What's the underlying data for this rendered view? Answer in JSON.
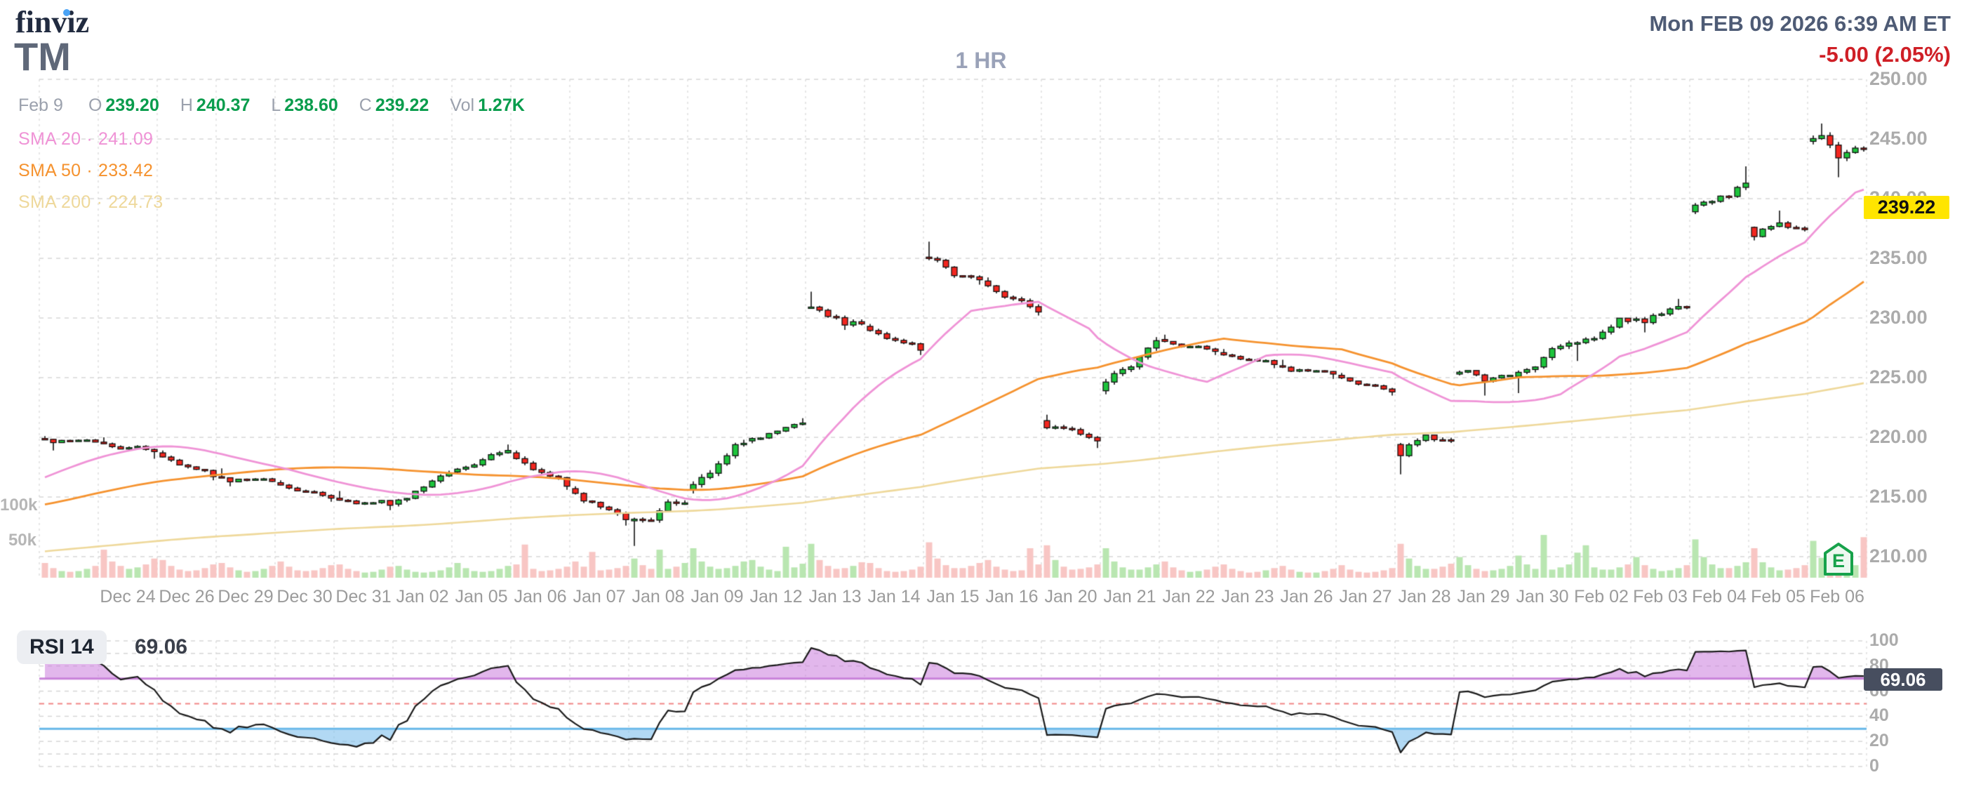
{
  "header": {
    "logo": "finviz",
    "ticker": "TM",
    "timeframe": "1 HR",
    "datetime": "Mon FEB 09 2026 6:39 AM ET",
    "change": "-5.00 (2.05%)"
  },
  "quote": {
    "date": "Feb 9",
    "fields": [
      {
        "label": "O",
        "value": "239.20"
      },
      {
        "label": "H",
        "value": "240.37"
      },
      {
        "label": "L",
        "value": "238.60"
      },
      {
        "label": "C",
        "value": "239.22"
      },
      {
        "label": "Vol",
        "value": "1.27K"
      }
    ]
  },
  "legend": [
    {
      "label": "SMA 20",
      "sep": "·",
      "value": "241.09",
      "color": "#ef93d6"
    },
    {
      "label": "SMA 50",
      "sep": "·",
      "value": "233.42",
      "color": "#f5922e"
    },
    {
      "label": "SMA 200",
      "sep": "·",
      "value": "224.73",
      "color": "#eed89a"
    }
  ],
  "colors": {
    "candle_up": "#1dc43c",
    "candle_down": "#f3261f",
    "wick": "#111111",
    "volume_up": "#b9e6b1",
    "volume_down": "#f8c6c4",
    "sma20": "#ef93d6",
    "sma50": "#f5922e",
    "sma200": "#eed89a",
    "grid": "#d4d4d4",
    "rsi_line": "#1a1a1a",
    "rsi_overbought_line": "#c884d8",
    "rsi_oversold_line": "#66b7e8",
    "rsi_mid_line": "#f08585",
    "rsi_overbought_fill": "rgba(203,124,221,0.55)",
    "rsi_oversold_fill": "rgba(126,192,236,0.6)",
    "badge_bg": "#ffe500",
    "rsi_badge_bg": "#474e5f"
  },
  "chart_data": {
    "type": "candlestick",
    "symbol": "TM",
    "timeframe": "1 HR",
    "title": "TM 1 HR candlestick chart with SMA 20/50/200, volume and RSI 14",
    "ylim": [
      207.5,
      251.5
    ],
    "price_axis_ticks": [
      "250.00",
      "245.00",
      "240.00",
      "235.00",
      "230.00",
      "225.00",
      "220.00",
      "215.00",
      "210.00"
    ],
    "volume_ticks": [
      "100k",
      "50k"
    ],
    "current_price": "239.22",
    "sma_current": {
      "sma20": 241.09,
      "sma50": 233.42,
      "sma200": 224.73
    },
    "earnings_marker": {
      "label": "E",
      "date": "Feb 06"
    },
    "days": [
      {
        "date": "",
        "o": 219.9,
        "h": 220.1,
        "l": 218.9,
        "c": 219.6,
        "v": [
          20,
          13,
          9,
          8,
          9,
          12,
          16
        ]
      },
      {
        "date": "Dec 24",
        "o": 219.6,
        "h": 220.0,
        "l": 218.2,
        "c": 218.8,
        "v": [
          38,
          22,
          16,
          12,
          14,
          18,
          26
        ]
      },
      {
        "date": "Dec 26",
        "o": 218.7,
        "h": 218.9,
        "l": 216.4,
        "c": 216.7,
        "v": [
          24,
          16,
          11,
          9,
          10,
          13,
          18
        ]
      },
      {
        "date": "Dec 29",
        "o": 216.7,
        "h": 217.4,
        "l": 215.9,
        "c": 216.3,
        "v": [
          20,
          14,
          10,
          8,
          9,
          12,
          16
        ]
      },
      {
        "date": "Dec 30",
        "o": 216.2,
        "h": 216.4,
        "l": 214.6,
        "c": 214.9,
        "v": [
          22,
          15,
          10,
          9,
          10,
          13,
          17
        ]
      },
      {
        "date": "Dec 31",
        "o": 214.9,
        "h": 215.5,
        "l": 213.9,
        "c": 214.3,
        "v": [
          18,
          12,
          9,
          7,
          8,
          11,
          15
        ]
      },
      {
        "date": "Jan 02",
        "o": 214.4,
        "h": 217.2,
        "l": 214.2,
        "c": 217.0,
        "v": [
          16,
          11,
          8,
          7,
          8,
          10,
          14
        ]
      },
      {
        "date": "Jan 05",
        "o": 217.1,
        "h": 219.4,
        "l": 216.9,
        "c": 218.9,
        "v": [
          20,
          13,
          9,
          8,
          9,
          12,
          16
        ]
      },
      {
        "date": "Jan 06",
        "o": 218.7,
        "h": 218.9,
        "l": 215.6,
        "c": 215.9,
        "v": [
          18,
          45,
          12,
          9,
          10,
          12,
          15
        ]
      },
      {
        "date": "Jan 07",
        "o": 215.7,
        "h": 215.9,
        "l": 212.6,
        "c": 213.1,
        "v": [
          22,
          15,
          35,
          10,
          11,
          13,
          16
        ]
      },
      {
        "date": "Jan 08",
        "o": 213.0,
        "h": 214.8,
        "l": 210.9,
        "c": 214.5,
        "v": [
          26,
          17,
          12,
          38,
          12,
          15,
          20
        ]
      },
      {
        "date": "Jan 09",
        "o": 215.6,
        "h": 219.8,
        "l": 215.3,
        "c": 219.5,
        "v": [
          40,
          22,
          15,
          12,
          13,
          16,
          22
        ]
      },
      {
        "date": "Jan 12",
        "o": 219.7,
        "h": 221.6,
        "l": 219.5,
        "c": 221.2,
        "v": [
          24,
          15,
          11,
          9,
          42,
          14,
          19
        ]
      },
      {
        "date": "Jan 13",
        "o": 230.9,
        "h": 232.2,
        "l": 229.0,
        "c": 229.5,
        "v": [
          46,
          24,
          16,
          12,
          13,
          16,
          21
        ]
      },
      {
        "date": "Jan 14",
        "o": 229.3,
        "h": 229.5,
        "l": 226.9,
        "c": 227.3,
        "v": [
          20,
          13,
          9,
          8,
          9,
          11,
          15
        ]
      },
      {
        "date": "Jan 15",
        "o": 235.1,
        "h": 236.4,
        "l": 232.8,
        "c": 233.2,
        "v": [
          48,
          26,
          17,
          13,
          13,
          16,
          20
        ]
      },
      {
        "date": "Jan 16",
        "o": 233.1,
        "h": 233.4,
        "l": 230.2,
        "c": 230.5,
        "v": [
          24,
          15,
          11,
          9,
          10,
          40,
          18
        ]
      },
      {
        "date": "Jan 20",
        "o": 221.4,
        "h": 221.9,
        "l": 219.1,
        "c": 219.7,
        "v": [
          44,
          24,
          15,
          11,
          12,
          14,
          18
        ]
      },
      {
        "date": "Jan 21",
        "o": 223.9,
        "h": 228.4,
        "l": 223.6,
        "c": 228.1,
        "v": [
          40,
          22,
          14,
          11,
          11,
          14,
          18
        ]
      },
      {
        "date": "Jan 22",
        "o": 228.2,
        "h": 228.6,
        "l": 226.9,
        "c": 227.2,
        "v": [
          22,
          14,
          10,
          8,
          9,
          11,
          15
        ]
      },
      {
        "date": "Jan 23",
        "o": 227.1,
        "h": 227.4,
        "l": 225.8,
        "c": 226.1,
        "v": [
          18,
          12,
          9,
          7,
          8,
          10,
          13
        ]
      },
      {
        "date": "Jan 26",
        "o": 226.0,
        "h": 226.5,
        "l": 224.9,
        "c": 225.3,
        "v": [
          16,
          11,
          8,
          7,
          7,
          9,
          12
        ]
      },
      {
        "date": "Jan 27",
        "o": 225.2,
        "h": 225.4,
        "l": 223.5,
        "c": 223.8,
        "v": [
          17,
          11,
          8,
          7,
          8,
          10,
          13
        ]
      },
      {
        "date": "Jan 28",
        "o": 219.4,
        "h": 220.2,
        "l": 216.9,
        "c": 219.7,
        "v": [
          46,
          26,
          16,
          12,
          12,
          15,
          19
        ]
      },
      {
        "date": "Jan 29",
        "o": 225.3,
        "h": 225.6,
        "l": 223.5,
        "c": 225.2,
        "v": [
          28,
          17,
          12,
          9,
          10,
          12,
          16
        ]
      },
      {
        "date": "Jan 30",
        "o": 225.1,
        "h": 228.1,
        "l": 223.7,
        "c": 227.9,
        "v": [
          30,
          18,
          12,
          58,
          11,
          14,
          18
        ]
      },
      {
        "date": "Feb 02",
        "o": 227.8,
        "h": 230.0,
        "l": 226.4,
        "c": 229.7,
        "v": [
          34,
          44,
          14,
          11,
          11,
          14,
          18
        ]
      },
      {
        "date": "Feb 03",
        "o": 229.8,
        "h": 231.6,
        "l": 228.8,
        "c": 230.9,
        "v": [
          28,
          17,
          12,
          9,
          10,
          13,
          17
        ]
      },
      {
        "date": "Feb 04",
        "o": 238.9,
        "h": 242.7,
        "l": 238.7,
        "c": 241.3,
        "v": [
          52,
          28,
          18,
          13,
          13,
          16,
          21
        ]
      },
      {
        "date": "Feb 05",
        "o": 237.6,
        "h": 239.0,
        "l": 236.5,
        "c": 237.4,
        "v": [
          40,
          21,
          14,
          10,
          11,
          13,
          17
        ]
      },
      {
        "date": "Feb 06",
        "o": 244.8,
        "h": 246.3,
        "l": 241.8,
        "c": 244.2,
        "v": [
          50,
          27,
          17,
          13,
          13,
          17,
          55
        ]
      }
    ]
  },
  "rsi": {
    "label": "RSI 14",
    "value": "69.06",
    "badge": "69.06",
    "ticks": [
      "100",
      "80",
      "60",
      "40",
      "20",
      "0"
    ],
    "overbought": 70,
    "mid": 50,
    "oversold": 30
  }
}
